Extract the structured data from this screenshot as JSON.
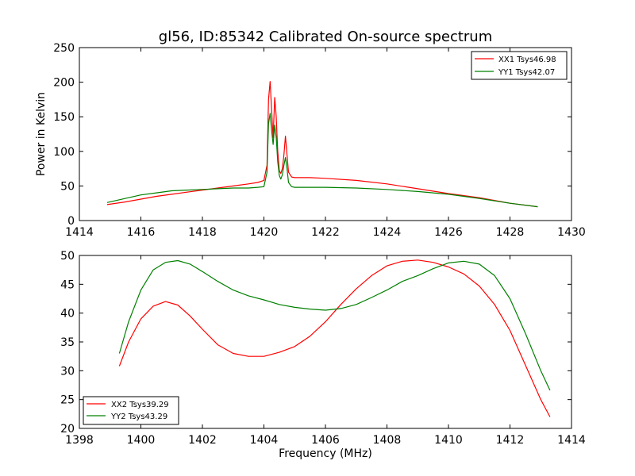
{
  "figure": {
    "title": "gl56, ID:85342 Calibrated On-source spectrum"
  },
  "chart_data": [
    {
      "type": "line",
      "title": "gl56, ID:85342 Calibrated On-source spectrum",
      "xlabel": "",
      "ylabel": "Power in Kelvin",
      "xlim": [
        1414,
        1430
      ],
      "ylim": [
        0,
        250
      ],
      "xticks": [
        1414,
        1416,
        1418,
        1420,
        1422,
        1424,
        1426,
        1428,
        1430
      ],
      "yticks": [
        0,
        50,
        100,
        150,
        200,
        250
      ],
      "grid": false,
      "legend": "top-right",
      "series": [
        {
          "name": "XX1 Tsys46.98",
          "color": "#ff0000",
          "x": [
            1414.9,
            1415.5,
            1416,
            1416.5,
            1417,
            1417.5,
            1418,
            1418.5,
            1419,
            1419.5,
            1419.8,
            1420.0,
            1420.1,
            1420.15,
            1420.2,
            1420.25,
            1420.3,
            1420.35,
            1420.4,
            1420.45,
            1420.5,
            1420.55,
            1420.6,
            1420.65,
            1420.7,
            1420.75,
            1420.8,
            1420.9,
            1421.0,
            1421.2,
            1421.5,
            1422,
            1423,
            1424,
            1425,
            1426,
            1427,
            1428,
            1428.9
          ],
          "values": [
            23,
            27,
            31,
            35,
            38,
            41,
            44,
            47,
            50,
            53,
            55,
            58,
            80,
            175,
            201,
            160,
            120,
            178,
            150,
            100,
            72,
            68,
            75,
            95,
            122,
            95,
            70,
            63,
            62,
            62,
            62,
            61,
            58,
            53,
            46,
            39,
            33,
            25,
            20
          ]
        },
        {
          "name": "YY1 Tsys42.07",
          "color": "#008000",
          "x": [
            1414.9,
            1415.5,
            1416,
            1416.5,
            1417,
            1417.5,
            1418,
            1418.5,
            1419,
            1419.5,
            1419.8,
            1420.0,
            1420.1,
            1420.15,
            1420.2,
            1420.25,
            1420.3,
            1420.35,
            1420.4,
            1420.45,
            1420.5,
            1420.55,
            1420.6,
            1420.65,
            1420.7,
            1420.75,
            1420.8,
            1420.9,
            1421.0,
            1421.2,
            1421.5,
            1422,
            1423,
            1424,
            1425,
            1426,
            1427,
            1428,
            1428.9
          ],
          "values": [
            26,
            32,
            37,
            40,
            43,
            44,
            45,
            46,
            47,
            47,
            48,
            49,
            70,
            140,
            155,
            130,
            110,
            138,
            120,
            85,
            65,
            60,
            66,
            80,
            91,
            75,
            55,
            49,
            48,
            48,
            48,
            48,
            47,
            45,
            42,
            38,
            32,
            25,
            20
          ]
        }
      ]
    },
    {
      "type": "line",
      "title": "",
      "xlabel": "Frequency (MHz)",
      "ylabel": "",
      "xlim": [
        1398,
        1414
      ],
      "ylim": [
        20,
        50
      ],
      "xticks": [
        1398,
        1400,
        1402,
        1404,
        1406,
        1408,
        1410,
        1412,
        1414
      ],
      "yticks": [
        20,
        25,
        30,
        35,
        40,
        45,
        50
      ],
      "grid": false,
      "legend": "bottom-left",
      "series": [
        {
          "name": "XX2 Tsys39.29",
          "color": "#ff0000",
          "x": [
            1399.3,
            1399.6,
            1400,
            1400.4,
            1400.8,
            1401.2,
            1401.6,
            1402,
            1402.5,
            1403,
            1403.5,
            1404,
            1404.5,
            1405,
            1405.5,
            1406,
            1406.5,
            1407,
            1407.5,
            1408,
            1408.5,
            1409,
            1409.5,
            1410,
            1410.5,
            1411,
            1411.5,
            1412,
            1412.5,
            1413,
            1413.3
          ],
          "values": [
            30.8,
            35,
            39,
            41.2,
            42,
            41.4,
            39.5,
            37.2,
            34.5,
            33,
            32.5,
            32.5,
            33.2,
            34.2,
            36,
            38.5,
            41.5,
            44.2,
            46.5,
            48.2,
            49,
            49.2,
            48.8,
            48,
            46.8,
            44.7,
            41.5,
            37,
            31,
            25,
            22
          ]
        },
        {
          "name": "YY2 Tsys43.29",
          "color": "#008000",
          "x": [
            1399.3,
            1399.6,
            1400,
            1400.4,
            1400.8,
            1401.2,
            1401.6,
            1402,
            1402.5,
            1403,
            1403.5,
            1404,
            1404.5,
            1405,
            1405.5,
            1406,
            1406.5,
            1407,
            1407.5,
            1408,
            1408.5,
            1409,
            1409.5,
            1410,
            1410.5,
            1411,
            1411.5,
            1412,
            1412.5,
            1413,
            1413.3
          ],
          "values": [
            33,
            38.5,
            44,
            47.5,
            48.8,
            49.1,
            48.5,
            47.2,
            45.5,
            44,
            43,
            42.3,
            41.5,
            41,
            40.7,
            40.5,
            40.8,
            41.5,
            42.7,
            44,
            45.5,
            46.5,
            47.7,
            48.7,
            49,
            48.5,
            46.5,
            42.5,
            36.5,
            30,
            26.6
          ]
        }
      ]
    }
  ]
}
